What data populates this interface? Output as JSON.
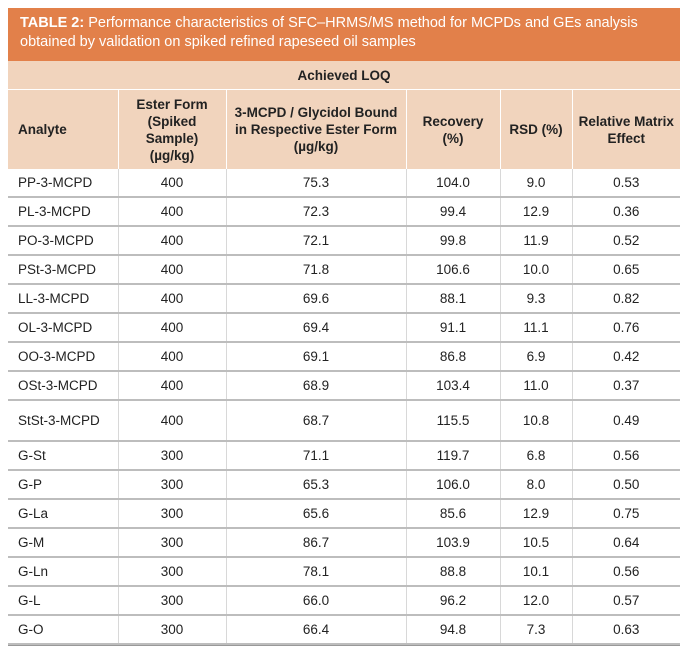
{
  "caption": {
    "label": "TABLE 2:",
    "text": " Performance characteristics of SFC–HRMS/MS method for MCPDs and GEs analysis obtained by validation on spiked refined rapeseed oil samples"
  },
  "band_title": "Achieved LOQ",
  "headers": [
    "Analyte",
    "Ester Form (Spiked Sample) (µg/kg)",
    "3-MCPD / Glycidol Bound in Respective Ester Form (µg/kg)",
    "Recovery (%)",
    "RSD (%)",
    "Relative Matrix Effect"
  ],
  "rows": [
    [
      "PP-3-MCPD",
      "400",
      "75.3",
      "104.0",
      "9.0",
      "0.53"
    ],
    [
      "PL-3-MCPD",
      "400",
      "72.3",
      "99.4",
      "12.9",
      "0.36"
    ],
    [
      "PO-3-MCPD",
      "400",
      "72.1",
      "99.8",
      "11.9",
      "0.52"
    ],
    [
      "PSt-3-MCPD",
      "400",
      "71.8",
      "106.6",
      "10.0",
      "0.65"
    ],
    [
      "LL-3-MCPD",
      "400",
      "69.6",
      "88.1",
      "9.3",
      "0.82"
    ],
    [
      "OL-3-MCPD",
      "400",
      "69.4",
      "91.1",
      "11.1",
      "0.76"
    ],
    [
      "OO-3-MCPD",
      "400",
      "69.1",
      "86.8",
      "6.9",
      "0.42"
    ],
    [
      "OSt-3-MCPD",
      "400",
      "68.9",
      "103.4",
      "11.0",
      "0.37"
    ],
    [
      "StSt-3-MCPD",
      "400",
      "68.7",
      "115.5",
      "10.8",
      "0.49"
    ],
    [
      "G-St",
      "300",
      "71.1",
      "119.7",
      "6.8",
      "0.56"
    ],
    [
      "G-P",
      "300",
      "65.3",
      "106.0",
      "8.0",
      "0.50"
    ],
    [
      "G-La",
      "300",
      "65.6",
      "85.6",
      "12.9",
      "0.75"
    ],
    [
      "G-M",
      "300",
      "86.7",
      "103.9",
      "10.5",
      "0.64"
    ],
    [
      "G-Ln",
      "300",
      "78.1",
      "88.8",
      "10.1",
      "0.56"
    ],
    [
      "G-L",
      "300",
      "66.0",
      "96.2",
      "12.0",
      "0.57"
    ],
    [
      "G-O",
      "300",
      "66.4",
      "94.8",
      "7.3",
      "0.63"
    ]
  ],
  "colors": {
    "caption_bg": "#e2804a",
    "header_bg": "#f1d4bd"
  }
}
